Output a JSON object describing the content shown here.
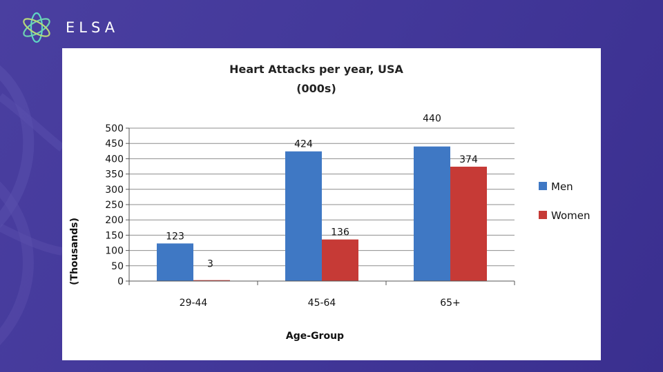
{
  "brand": {
    "name": "ELSA",
    "logo_icon": "flower-logo-icon",
    "logo_colors": [
      "#5fd6c4",
      "#f2c94c"
    ]
  },
  "colors": {
    "men": "#3f78c4",
    "women": "#c63a36"
  },
  "chart_data": {
    "type": "bar",
    "title": "Heart Attacks per year, USA",
    "subtitle": "(000s)",
    "xlabel": "Age-Group",
    "ylabel": "(Thousands)",
    "categories": [
      "29-44",
      "45-64",
      "65+"
    ],
    "series": [
      {
        "name": "Men",
        "values": [
          123,
          424,
          440
        ],
        "labels": [
          "123",
          "424",
          "440"
        ]
      },
      {
        "name": "Women",
        "values": [
          3,
          136,
          374
        ],
        "labels": [
          "3",
          "136",
          "374"
        ]
      }
    ],
    "ylim": [
      0,
      500
    ],
    "yticks": [
      0,
      50,
      100,
      150,
      200,
      250,
      300,
      350,
      400,
      450,
      500
    ],
    "grid": true,
    "legend_position": "right"
  }
}
